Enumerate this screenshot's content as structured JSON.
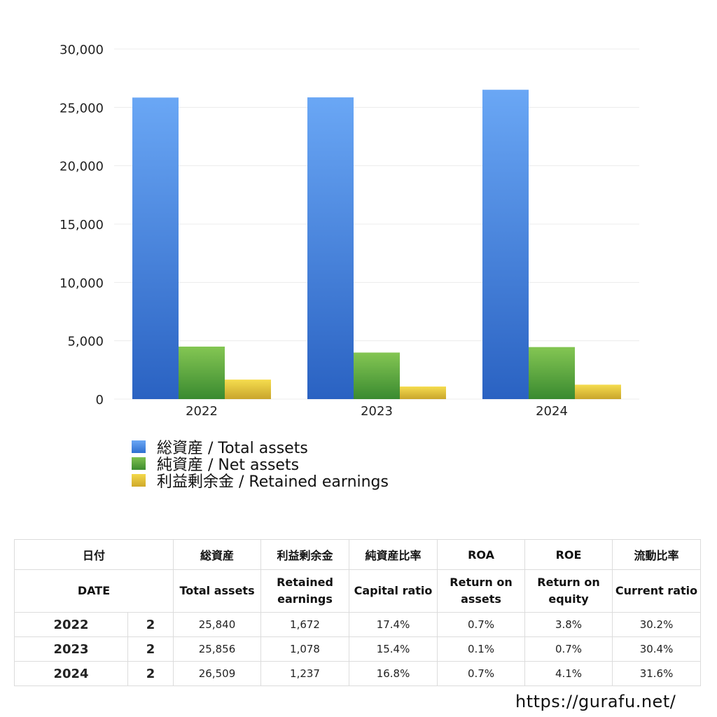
{
  "chart_data": {
    "type": "bar",
    "categories": [
      "2022",
      "2023",
      "2024"
    ],
    "series": [
      {
        "name": "総資産 / Total assets",
        "values": [
          25840,
          25856,
          26509
        ],
        "color": "#4a8ae6"
      },
      {
        "name": "純資産 / Net assets",
        "values": [
          4500,
          3990,
          4460
        ],
        "color": "#5aa63e"
      },
      {
        "name": "利益剰余金 / Retained earnings",
        "values": [
          1672,
          1078,
          1237
        ],
        "color": "#e8c53b"
      }
    ],
    "ylim": [
      0,
      30000
    ],
    "yticks": [
      "0",
      "5,000",
      "10,000",
      "15,000",
      "20,000",
      "25,000",
      "30,000"
    ],
    "ytick_values": [
      0,
      5000,
      10000,
      15000,
      20000,
      25000,
      30000
    ],
    "grid": true,
    "legend_position": "bottom-left"
  },
  "table": {
    "headers_jp": [
      "日付",
      "総資産",
      "利益剰余金",
      "純資産比率",
      "ROA",
      "ROE",
      "流動比率"
    ],
    "headers_en": [
      "DATE",
      "Total assets",
      "Retained\nearnings",
      "Capital ratio",
      "Return on\nassets",
      "Return on\nequity",
      "Current ratio"
    ],
    "rows": [
      {
        "year": "2022",
        "q": "2",
        "total": "25,840",
        "retained": "1,672",
        "capital": "17.4%",
        "roa": "0.7%",
        "roe": "3.8%",
        "current": "30.2%"
      },
      {
        "year": "2023",
        "q": "2",
        "total": "25,856",
        "retained": "1,078",
        "capital": "15.4%",
        "roa": "0.1%",
        "roe": "0.7%",
        "current": "30.4%"
      },
      {
        "year": "2024",
        "q": "2",
        "total": "26,509",
        "retained": "1,237",
        "capital": "16.8%",
        "roa": "0.7%",
        "roe": "4.1%",
        "current": "31.6%"
      }
    ]
  },
  "footer": {
    "url": "https://gurafu.net/"
  }
}
